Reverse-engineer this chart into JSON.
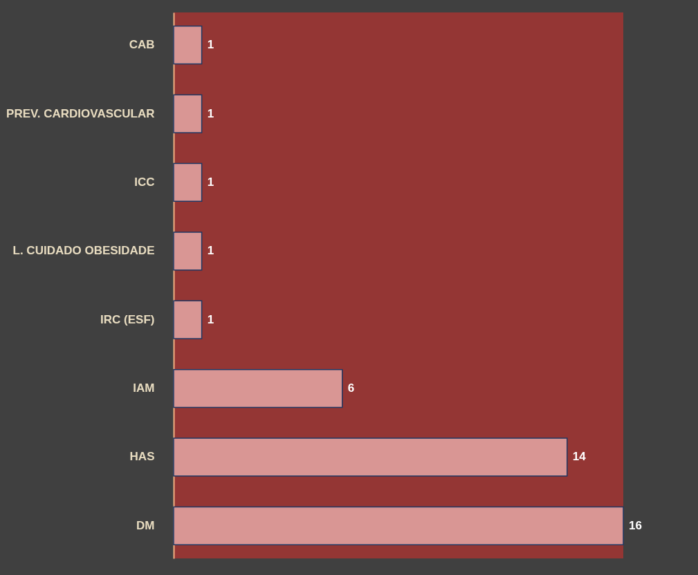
{
  "chart_data": {
    "type": "bar",
    "orientation": "horizontal",
    "categories": [
      "CAB",
      "PREV. CARDIOVASCULAR",
      "ICC",
      "L. CUIDADO OBESIDADE",
      "IRC (ESF)",
      "IAM",
      "HAS",
      "DM"
    ],
    "values": [
      1,
      1,
      1,
      1,
      1,
      6,
      14,
      16
    ],
    "color": "#d99694",
    "data_labels": true
  }
}
